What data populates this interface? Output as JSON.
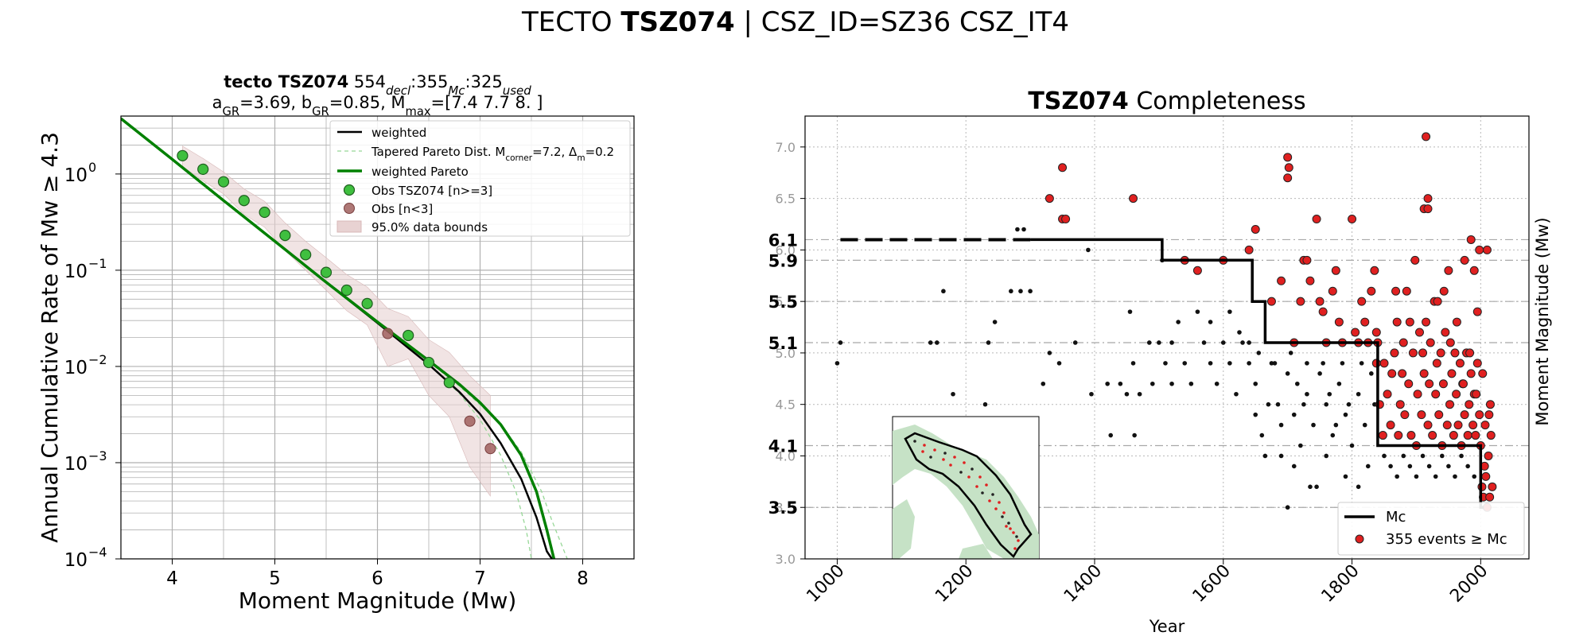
{
  "suptitle": {
    "prefix": "TECTO",
    "bold": "TSZ074",
    "suffix": "| CSZ_ID=SZ36 CSZ_IT4"
  },
  "colors": {
    "green": "#008000",
    "obs_green": "#3fbf3f",
    "obs_brown": "#a0605e",
    "band": "#e8d2d2",
    "red": "#e02020",
    "pale_green": "#98d898",
    "map_land": "#c6e2c6"
  },
  "chart_data": [
    {
      "type": "scatter",
      "title_line1": {
        "bold": "tecto TSZ074",
        "n_decl": "554",
        "decl": "decl",
        "n_mc": "355",
        "mc": "Mc",
        "n_used": "325",
        "used": "used"
      },
      "title_line2": "a<sub>GR</sub>=3.69,  b<sub>GR</sub>=0.85, M<sub>max</sub>=[7.4 7.7 8. ]",
      "xlabel": "Moment Magnitude (Mw)",
      "ylabel": "Annual Cumulative Rate of Mw  ≥  4.3",
      "xlim": [
        3.5,
        8.5
      ],
      "ylim": [
        0.0001,
        4
      ],
      "yscale": "log",
      "grid": true,
      "xticks": [
        "4",
        "5",
        "6",
        "7",
        "8"
      ],
      "yticks": [
        "10",
        "10",
        "10",
        "10",
        "10"
      ],
      "ytick_exponents": [
        "0",
        "−1",
        "−2",
        "−3",
        "−4"
      ],
      "legend": {
        "position": "top-right",
        "entries": [
          "weighted",
          "Tapered Pareto Dist. M<sub>corner</sub>=7.2, Δ<sub>m</sub>=0.2",
          "weighted Pareto",
          "Obs TSZ074 [n>=3]",
          "Obs [n<3]",
          "95.0% data bounds"
        ]
      },
      "series": [
        {
          "name": "Obs TSZ074 [n>=3]",
          "x": [
            4.1,
            4.3,
            4.5,
            4.7,
            4.9,
            5.1,
            5.3,
            5.5,
            5.7,
            5.9,
            6.3,
            6.5,
            6.7
          ],
          "y": [
            1.55,
            1.12,
            0.83,
            0.53,
            0.4,
            0.23,
            0.145,
            0.095,
            0.062,
            0.045,
            0.021,
            0.011,
            0.0068
          ]
        },
        {
          "name": "Obs [n<3]",
          "x": [
            6.1,
            6.9,
            7.1
          ],
          "y": [
            0.022,
            0.0027,
            0.0014
          ]
        },
        {
          "name": "weighted",
          "x": [
            3.5,
            4.0,
            4.5,
            5.0,
            5.5,
            6.0,
            6.5,
            6.8,
            7.0,
            7.2,
            7.4,
            7.55,
            7.65,
            7.7
          ],
          "y": [
            3.77,
            1.42,
            0.53,
            0.2,
            0.075,
            0.0283,
            0.0105,
            0.0054,
            0.0032,
            0.0016,
            0.00068,
            0.00027,
            0.00012,
            0.0001
          ]
        },
        {
          "name": "weighted Pareto",
          "x": [
            3.5,
            4.0,
            4.5,
            5.0,
            5.5,
            6.0,
            6.5,
            6.8,
            7.0,
            7.2,
            7.4,
            7.55,
            7.65,
            7.72
          ],
          "y": [
            3.77,
            1.42,
            0.53,
            0.2,
            0.075,
            0.029,
            0.0115,
            0.0065,
            0.0042,
            0.0025,
            0.0012,
            0.0005,
            0.0002,
            0.0001
          ]
        },
        {
          "name": "Tapered Pareto Dist. a",
          "x": [
            6.0,
            6.5,
            6.8,
            7.0,
            7.2,
            7.35,
            7.45,
            7.5
          ],
          "y": [
            0.0283,
            0.0105,
            0.0052,
            0.0028,
            0.0012,
            0.0005,
            0.0002,
            0.0001
          ]
        },
        {
          "name": "Tapered Pareto Dist. b",
          "x": [
            6.0,
            6.5,
            6.8,
            7.0,
            7.2,
            7.4,
            7.6,
            7.7,
            7.85
          ],
          "y": [
            0.0285,
            0.0112,
            0.0062,
            0.004,
            0.0025,
            0.0013,
            0.0005,
            0.00025,
            0.0001
          ]
        },
        {
          "name": "95.0% data bounds",
          "x": [
            4.1,
            4.3,
            4.5,
            4.7,
            4.9,
            5.1,
            5.3,
            5.5,
            5.7,
            5.9,
            6.1,
            6.3,
            6.5,
            6.7,
            6.9,
            7.1
          ],
          "upper": [
            1.95,
            1.45,
            1.05,
            0.7,
            0.52,
            0.31,
            0.2,
            0.135,
            0.09,
            0.067,
            0.04,
            0.033,
            0.019,
            0.014,
            0.008,
            0.005
          ],
          "lower": [
            1.2,
            0.85,
            0.62,
            0.38,
            0.28,
            0.16,
            0.1,
            0.062,
            0.038,
            0.027,
            0.01,
            0.012,
            0.005,
            0.003,
            0.0009,
            0.00045
          ]
        }
      ]
    },
    {
      "type": "scatter",
      "title": {
        "bold": "TSZ074",
        "rest": "Completeness"
      },
      "xlabel": "Year",
      "ylabel": "Moment Magnitude (Mw)",
      "xlim": [
        950,
        2075
      ],
      "ylim": [
        3.0,
        7.3
      ],
      "grid": true,
      "xticks": [
        "1000",
        "1200",
        "1400",
        "1600",
        "1800",
        "2000"
      ],
      "yticks": [
        "3.0",
        "3.5",
        "4.0",
        "4.5",
        "5.0",
        "5.5",
        "6.0",
        "6.5",
        "7.0"
      ],
      "mc_labels": [
        "6.1",
        "5.9",
        "5.5",
        "5.1",
        "4.1",
        "3.5"
      ],
      "legend": {
        "position": "bottom-right",
        "entries": [
          "Mc",
          "355 events  ≥  Mc"
        ]
      },
      "mc_step": {
        "dashed_x": [
          1005,
          1300
        ],
        "dashed_y": 6.1,
        "x": [
          1300,
          1505,
          1505,
          1645,
          1645,
          1665,
          1665,
          1840,
          1840,
          2000,
          2000,
          2005
        ],
        "y": [
          6.1,
          6.1,
          5.9,
          5.9,
          5.5,
          5.5,
          5.1,
          5.1,
          4.1,
          4.1,
          3.5,
          3.5
        ]
      },
      "red_events": [
        [
          1330,
          6.5
        ],
        [
          1350,
          6.8
        ],
        [
          1350,
          6.3
        ],
        [
          1355,
          6.3
        ],
        [
          1460,
          6.5
        ],
        [
          1540,
          5.9
        ],
        [
          1560,
          5.8
        ],
        [
          1600,
          5.9
        ],
        [
          1640,
          6.0
        ],
        [
          1650,
          6.2
        ],
        [
          1700,
          6.9
        ],
        [
          1702,
          6.8
        ],
        [
          1700,
          6.7
        ],
        [
          1690,
          5.7
        ],
        [
          1675,
          5.5
        ],
        [
          1710,
          5.1
        ],
        [
          1720,
          5.5
        ],
        [
          1725,
          5.9
        ],
        [
          1730,
          5.9
        ],
        [
          1735,
          5.7
        ],
        [
          1745,
          6.3
        ],
        [
          1750,
          5.5
        ],
        [
          1755,
          5.4
        ],
        [
          1760,
          5.1
        ],
        [
          1770,
          5.6
        ],
        [
          1775,
          5.8
        ],
        [
          1780,
          5.3
        ],
        [
          1785,
          5.1
        ],
        [
          1800,
          6.3
        ],
        [
          1805,
          5.2
        ],
        [
          1810,
          5.1
        ],
        [
          1815,
          5.5
        ],
        [
          1820,
          5.3
        ],
        [
          1825,
          5.1
        ],
        [
          1830,
          5.6
        ],
        [
          1835,
          5.8
        ],
        [
          1838,
          5.2
        ],
        [
          1840,
          5.1
        ],
        [
          1850,
          4.9
        ],
        [
          1855,
          4.6
        ],
        [
          1860,
          4.3
        ],
        [
          1862,
          4.8
        ],
        [
          1866,
          5.0
        ],
        [
          1870,
          5.3
        ],
        [
          1872,
          4.2
        ],
        [
          1875,
          4.5
        ],
        [
          1878,
          4.8
        ],
        [
          1880,
          5.1
        ],
        [
          1882,
          4.4
        ],
        [
          1885,
          5.6
        ],
        [
          1888,
          4.7
        ],
        [
          1890,
          5.3
        ],
        [
          1892,
          4.2
        ],
        [
          1895,
          5.0
        ],
        [
          1898,
          5.9
        ],
        [
          1900,
          4.1
        ],
        [
          1902,
          4.6
        ],
        [
          1905,
          5.2
        ],
        [
          1908,
          4.4
        ],
        [
          1910,
          5.0
        ],
        [
          1912,
          4.8
        ],
        [
          1915,
          5.3
        ],
        [
          1918,
          4.3
        ],
        [
          1920,
          4.7
        ],
        [
          1922,
          5.1
        ],
        [
          1925,
          4.2
        ],
        [
          1928,
          5.5
        ],
        [
          1930,
          4.6
        ],
        [
          1932,
          4.9
        ],
        [
          1935,
          4.4
        ],
        [
          1938,
          5.0
        ],
        [
          1940,
          4.1
        ],
        [
          1942,
          4.7
        ],
        [
          1945,
          5.2
        ],
        [
          1948,
          4.3
        ],
        [
          1950,
          5.8
        ],
        [
          1952,
          4.5
        ],
        [
          1955,
          4.8
        ],
        [
          1958,
          4.2
        ],
        [
          1960,
          5.0
        ],
        [
          1962,
          4.6
        ],
        [
          1965,
          4.3
        ],
        [
          1968,
          4.9
        ],
        [
          1970,
          4.1
        ],
        [
          1972,
          4.7
        ],
        [
          1975,
          4.4
        ],
        [
          1978,
          5.0
        ],
        [
          1980,
          4.2
        ],
        [
          1982,
          4.5
        ],
        [
          1985,
          4.8
        ],
        [
          1988,
          4.3
        ],
        [
          1990,
          4.6
        ],
        [
          1992,
          4.2
        ],
        [
          1995,
          4.9
        ],
        [
          1998,
          4.4
        ],
        [
          2000,
          4.1
        ],
        [
          2002,
          3.7
        ],
        [
          2004,
          3.6
        ],
        [
          2006,
          3.9
        ],
        [
          2008,
          3.8
        ],
        [
          2010,
          3.5
        ],
        [
          2012,
          4.0
        ],
        [
          2014,
          3.6
        ],
        [
          2016,
          4.2
        ],
        [
          2018,
          3.7
        ],
        [
          2015,
          4.5
        ],
        [
          2010,
          6.0
        ],
        [
          1838,
          4.9
        ],
        [
          1843,
          4.5
        ],
        [
          1848,
          4.2
        ],
        [
          1985,
          6.1
        ],
        [
          1990,
          5.8
        ],
        [
          1975,
          5.9
        ],
        [
          1995,
          5.4
        ],
        [
          1998,
          6.0
        ],
        [
          2003,
          4.8
        ],
        [
          2007,
          4.3
        ],
        [
          1868,
          5.6
        ],
        [
          1912,
          6.4
        ],
        [
          1918,
          6.5
        ],
        [
          1915,
          7.1
        ],
        [
          1918,
          6.4
        ],
        [
          1933,
          5.5
        ],
        [
          1943,
          5.6
        ],
        [
          1953,
          5.1
        ],
        [
          1963,
          5.3
        ],
        [
          1973,
          4.7
        ],
        [
          1983,
          5.0
        ],
        [
          1993,
          4.6
        ],
        [
          2013,
          4.4
        ]
      ],
      "black_events": [
        [
          1005,
          5.1
        ],
        [
          1000,
          4.9
        ],
        [
          1145,
          5.1
        ],
        [
          1155,
          5.1
        ],
        [
          1165,
          5.6
        ],
        [
          1180,
          4.6
        ],
        [
          1230,
          4.5
        ],
        [
          1235,
          5.1
        ],
        [
          1245,
          5.3
        ],
        [
          1270,
          5.6
        ],
        [
          1285,
          5.6
        ],
        [
          1300,
          5.6
        ],
        [
          1280,
          6.2
        ],
        [
          1290,
          6.2
        ],
        [
          1320,
          4.7
        ],
        [
          1330,
          5.0
        ],
        [
          1345,
          4.9
        ],
        [
          1370,
          5.1
        ],
        [
          1390,
          6.0
        ],
        [
          1395,
          4.6
        ],
        [
          1420,
          4.7
        ],
        [
          1425,
          4.2
        ],
        [
          1440,
          4.7
        ],
        [
          1450,
          4.6
        ],
        [
          1455,
          5.4
        ],
        [
          1460,
          4.9
        ],
        [
          1462,
          4.2
        ],
        [
          1470,
          4.6
        ],
        [
          1485,
          5.1
        ],
        [
          1490,
          4.7
        ],
        [
          1500,
          5.1
        ],
        [
          1510,
          4.9
        ],
        [
          1520,
          4.7
        ],
        [
          1530,
          5.3
        ],
        [
          1540,
          4.9
        ],
        [
          1550,
          4.7
        ],
        [
          1560,
          5.4
        ],
        [
          1570,
          5.1
        ],
        [
          1580,
          4.9
        ],
        [
          1590,
          4.7
        ],
        [
          1600,
          5.1
        ],
        [
          1610,
          4.9
        ],
        [
          1620,
          4.6
        ],
        [
          1630,
          5.1
        ],
        [
          1640,
          4.9
        ],
        [
          1650,
          4.7
        ],
        [
          1660,
          4.2
        ],
        [
          1670,
          4.5
        ],
        [
          1680,
          4.9
        ],
        [
          1690,
          4.3
        ],
        [
          1700,
          4.8
        ],
        [
          1710,
          4.4
        ],
        [
          1720,
          4.1
        ],
        [
          1730,
          4.6
        ],
        [
          1740,
          4.3
        ],
        [
          1750,
          4.8
        ],
        [
          1760,
          4.5
        ],
        [
          1770,
          4.2
        ],
        [
          1780,
          4.7
        ],
        [
          1790,
          4.4
        ],
        [
          1800,
          4.1
        ],
        [
          1810,
          4.6
        ],
        [
          1820,
          4.3
        ],
        [
          1830,
          4.8
        ],
        [
          1690,
          4.0
        ],
        [
          1710,
          3.9
        ],
        [
          1735,
          3.7
        ],
        [
          1745,
          3.7
        ],
        [
          1790,
          3.8
        ],
        [
          1810,
          3.7
        ],
        [
          1700,
          3.5
        ],
        [
          1825,
          3.9
        ],
        [
          1760,
          4.0
        ],
        [
          1775,
          4.3
        ],
        [
          1650,
          4.4
        ],
        [
          1665,
          4.0
        ],
        [
          1685,
          4.5
        ],
        [
          1715,
          4.7
        ],
        [
          1725,
          4.5
        ],
        [
          1755,
          4.9
        ],
        [
          1765,
          4.6
        ],
        [
          1785,
          4.9
        ],
        [
          1795,
          4.5
        ],
        [
          1815,
          4.9
        ],
        [
          1835,
          4.5
        ],
        [
          1850,
          4.0
        ],
        [
          1860,
          3.9
        ],
        [
          1870,
          3.8
        ],
        [
          1880,
          4.0
        ],
        [
          1890,
          3.9
        ],
        [
          1900,
          3.8
        ],
        [
          1910,
          4.0
        ],
        [
          1920,
          3.9
        ],
        [
          1930,
          3.8
        ],
        [
          1940,
          4.0
        ],
        [
          1950,
          3.9
        ],
        [
          1960,
          3.8
        ],
        [
          1970,
          4.0
        ],
        [
          1980,
          3.9
        ],
        [
          1990,
          3.8
        ],
        [
          1505,
          5.9
        ],
        [
          1520,
          5.1
        ],
        [
          1580,
          5.3
        ],
        [
          1610,
          5.4
        ],
        [
          1625,
          5.2
        ],
        [
          1640,
          5.1
        ],
        [
          1655,
          5.0
        ],
        [
          1675,
          4.9
        ],
        [
          1705,
          5.0
        ],
        [
          1730,
          4.9
        ]
      ],
      "inset": {
        "type": "map"
      }
    }
  ]
}
